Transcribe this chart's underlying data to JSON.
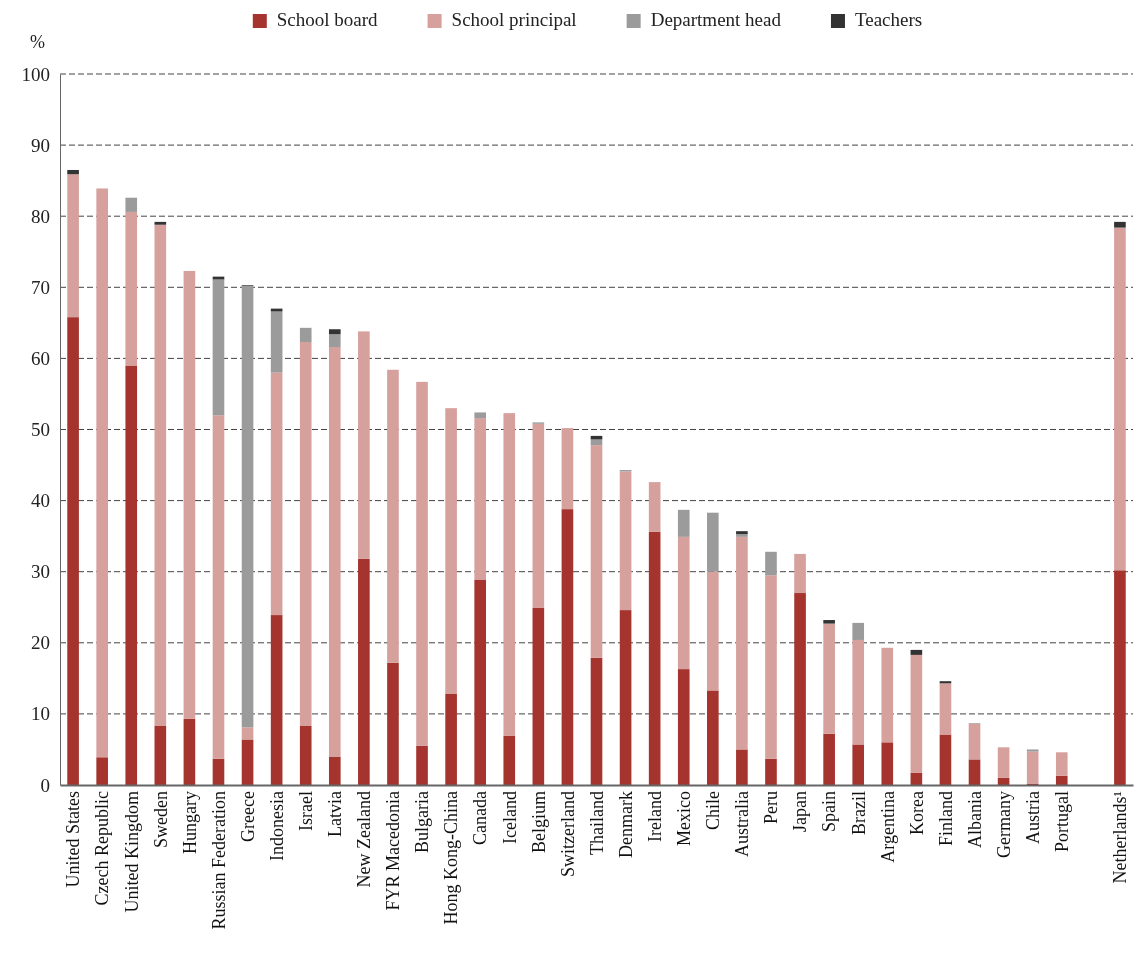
{
  "chart_data": {
    "type": "bar",
    "stacked": true,
    "ylabel": "%",
    "legend": "top",
    "grid": "y",
    "categories": [
      "United States",
      "Czech Republic",
      "United Kingdom",
      "Sweden",
      "Hungary",
      "Russian Federation",
      "Greece",
      "Indonesia",
      "Israel",
      "Latvia",
      "New Zealand",
      "FYR Macedonia",
      "Bulgaria",
      "Hong Kong-China",
      "Canada",
      "Iceland",
      "Belgium",
      "Switzerland",
      "Thailand",
      "Denmark",
      "Ireland",
      "Mexico",
      "Chile",
      "Australia",
      "Peru",
      "Japan",
      "Spain",
      "Brazil",
      "Argentina",
      "Korea",
      "Finland",
      "Albania",
      "Germany",
      "Austria",
      "Portugal",
      null,
      "Netherlands¹"
    ],
    "ylim": [
      0,
      100
    ],
    "yticks": [
      0,
      10,
      20,
      30,
      40,
      50,
      60,
      70,
      80,
      90,
      100
    ],
    "series": [
      {
        "name": "School board",
        "color": "#a5342e",
        "values": [
          65.8,
          3.9,
          59,
          8.3,
          9.3,
          3.7,
          6.4,
          23.9,
          8.3,
          4,
          31.8,
          17.2,
          5.5,
          12.8,
          28.9,
          6.9,
          24.9,
          38.8,
          17.9,
          24.6,
          35.6,
          16.3,
          13.3,
          5,
          3.7,
          27,
          7.2,
          5.7,
          6,
          1.7,
          7.1,
          3.6,
          1,
          0.2,
          1.3,
          null,
          30.2
        ]
      },
      {
        "name": "School principal",
        "color": "#d6a09d",
        "values": [
          20.1,
          80,
          21.6,
          70.5,
          63,
          48.3,
          1.7,
          34.1,
          54,
          57.6,
          32,
          41.2,
          51.2,
          40.2,
          22.7,
          45.4,
          25.9,
          11.4,
          29.9,
          19.5,
          7,
          18.6,
          16.7,
          29.9,
          25.8,
          5.5,
          15.5,
          14.7,
          13.3,
          16.6,
          7.2,
          5,
          4.3,
          4.5,
          3.3,
          null,
          48.2
        ]
      },
      {
        "name": "Department head",
        "color": "#9b9b9b",
        "values": [
          0,
          0,
          2,
          0,
          0,
          19.1,
          62.1,
          8.6,
          2,
          1.8,
          0,
          0,
          0,
          0,
          0.8,
          0,
          0.2,
          0,
          0.8,
          0.2,
          0,
          3.8,
          8.3,
          0.4,
          3.3,
          0,
          0,
          2.4,
          0,
          0,
          0,
          0.1,
          0,
          0.3,
          0,
          null,
          0
        ]
      },
      {
        "name": "Teachers",
        "color": "#333333",
        "values": [
          0.6,
          0,
          0,
          0.4,
          0,
          0.4,
          0.1,
          0.4,
          0,
          0.7,
          0,
          0,
          0,
          0,
          0,
          0,
          0,
          0,
          0.5,
          0,
          0,
          0,
          0,
          0.4,
          0,
          0,
          0.5,
          0,
          0,
          0.7,
          0.3,
          0,
          0,
          0,
          0,
          null,
          0.8
        ]
      }
    ]
  }
}
